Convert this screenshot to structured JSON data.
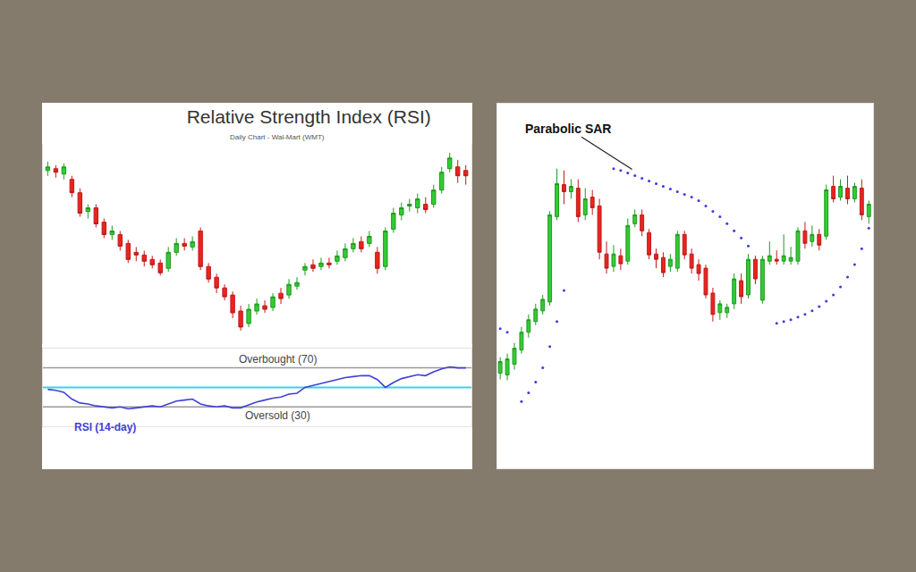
{
  "chart_data": [
    {
      "type": "candlestick",
      "title": "Relative Strength Index (RSI)",
      "subtitle": "Daily Chart - Wal-Mart (WMT)",
      "x": [
        1,
        2,
        3,
        4,
        5,
        6,
        7,
        8,
        9,
        10,
        11,
        12,
        13,
        14,
        15,
        16,
        17,
        18,
        19,
        20,
        21,
        22,
        23,
        24,
        25,
        26,
        27,
        28,
        29,
        30,
        31,
        32,
        33,
        34,
        35,
        36,
        37,
        38,
        39,
        40,
        41,
        42,
        43,
        44,
        45,
        46,
        47,
        48,
        49,
        50,
        51,
        52,
        53
      ],
      "open": [
        310,
        312,
        306,
        300,
        285,
        264,
        268,
        252,
        238,
        238,
        228,
        218,
        215,
        210,
        206,
        200,
        218,
        228,
        224,
        242,
        202,
        190,
        178,
        170,
        152,
        138,
        152,
        158,
        156,
        172,
        170,
        180,
        198,
        204,
        202,
        206,
        208,
        212,
        222,
        230,
        228,
        218,
        202,
        244,
        260,
        270,
        268,
        272,
        272,
        288,
        312,
        314,
        310
      ],
      "high": [
        320,
        316,
        318,
        304,
        290,
        272,
        272,
        256,
        248,
        242,
        232,
        224,
        220,
        214,
        210,
        224,
        234,
        234,
        236,
        246,
        206,
        194,
        182,
        174,
        158,
        160,
        166,
        164,
        172,
        178,
        188,
        190,
        206,
        210,
        212,
        212,
        220,
        228,
        234,
        236,
        242,
        224,
        246,
        268,
        274,
        278,
        284,
        280,
        294,
        314,
        330,
        322,
        316
      ],
      "low": [
        304,
        302,
        300,
        280,
        258,
        256,
        246,
        234,
        232,
        220,
        206,
        208,
        202,
        200,
        192,
        196,
        214,
        220,
        220,
        198,
        184,
        172,
        164,
        144,
        130,
        134,
        148,
        150,
        152,
        160,
        166,
        176,
        192,
        196,
        198,
        200,
        204,
        208,
        218,
        218,
        224,
        194,
        198,
        240,
        254,
        264,
        262,
        262,
        268,
        284,
        308,
        296,
        294
      ],
      "close": [
        314,
        308,
        314,
        285,
        262,
        268,
        250,
        238,
        242,
        225,
        210,
        215,
        208,
        204,
        195,
        218,
        228,
        225,
        230,
        202,
        188,
        178,
        168,
        150,
        134,
        154,
        160,
        154,
        168,
        166,
        182,
        184,
        202,
        200,
        206,
        204,
        214,
        222,
        228,
        222,
        236,
        200,
        242,
        262,
        268,
        272,
        278,
        266,
        288,
        308,
        324,
        304,
        304
      ],
      "xlim": [
        0.4,
        53.7
      ],
      "ylim": [
        115,
        340
      ],
      "tick_labels": false,
      "grid": false,
      "indicator": {
        "name": "RSI (14-day)",
        "type": "line",
        "color": "#4040d8",
        "values": [
          48,
          47,
          45,
          38,
          34,
          33,
          31,
          30,
          29,
          30,
          28,
          29,
          30,
          31,
          30,
          33,
          36,
          37,
          38,
          33,
          31,
          30,
          31,
          29,
          29,
          32,
          35,
          37,
          39,
          40,
          43,
          44,
          50,
          52,
          54,
          56,
          58,
          60,
          61,
          62,
          62,
          58,
          50,
          55,
          59,
          61,
          63,
          62,
          66,
          69,
          71,
          70,
          70
        ],
        "ylim": [
          10,
          90
        ],
        "levels": [
          {
            "label": "Overbought (70)",
            "value": 70,
            "color": "#9a9a9a"
          },
          {
            "label": "Oversold (30)",
            "value": 30,
            "color": "#9a9a9a"
          },
          {
            "value": 50,
            "color": "#3fd0e6"
          }
        ]
      }
    },
    {
      "type": "candlestick",
      "x": [
        1,
        2,
        3,
        4,
        5,
        6,
        7,
        8,
        9,
        10,
        11,
        12,
        13,
        14,
        15,
        16,
        17,
        18,
        19,
        20,
        21,
        22,
        23,
        24,
        25,
        26,
        27,
        28,
        29,
        30,
        31,
        32,
        33,
        34,
        35,
        36,
        37,
        38,
        39,
        40,
        41,
        42,
        43,
        44,
        45,
        46,
        47,
        48,
        49,
        50,
        51,
        52,
        53
      ],
      "open": [
        82,
        80,
        92,
        108,
        128,
        140,
        152,
        162,
        258,
        294,
        286,
        290,
        260,
        280,
        270,
        216,
        202,
        214,
        208,
        250,
        260,
        240,
        216,
        212,
        202,
        200,
        238,
        216,
        204,
        200,
        172,
        150,
        150,
        160,
        186,
        170,
        210,
        164,
        208,
        210,
        208,
        208,
        208,
        242,
        230,
        238,
        236,
        292,
        280,
        290,
        278,
        290,
        258
      ],
      "high": [
        100,
        104,
        116,
        134,
        148,
        160,
        170,
        264,
        312,
        310,
        300,
        300,
        290,
        288,
        278,
        230,
        226,
        222,
        256,
        266,
        266,
        244,
        222,
        218,
        216,
        242,
        242,
        222,
        210,
        204,
        178,
        164,
        160,
        194,
        194,
        216,
        214,
        214,
        230,
        220,
        238,
        224,
        246,
        252,
        248,
        244,
        294,
        304,
        300,
        304,
        296,
        300,
        276
      ],
      "low": [
        75,
        74,
        86,
        104,
        122,
        136,
        148,
        158,
        254,
        272,
        278,
        252,
        254,
        260,
        210,
        194,
        196,
        198,
        204,
        246,
        236,
        210,
        200,
        190,
        196,
        196,
        210,
        194,
        186,
        166,
        140,
        142,
        144,
        154,
        160,
        166,
        182,
        160,
        204,
        204,
        204,
        204,
        204,
        222,
        224,
        220,
        232,
        274,
        276,
        272,
        274,
        254,
        250
      ],
      "close": [
        95,
        98,
        110,
        128,
        142,
        154,
        165,
        260,
        295,
        286,
        292,
        258,
        278,
        268,
        218,
        200,
        216,
        205,
        248,
        260,
        242,
        215,
        210,
        195,
        210,
        238,
        215,
        200,
        194,
        170,
        148,
        160,
        156,
        188,
        168,
        210,
        188,
        210,
        214,
        208,
        214,
        212,
        242,
        228,
        238,
        226,
        288,
        278,
        292,
        278,
        292,
        260,
        272
      ],
      "xlim": [
        0.6,
        53.6
      ],
      "ylim": [
        -25,
        385
      ],
      "tick_labels": false,
      "grid": false,
      "indicator": {
        "name": "Parabolic SAR",
        "type": "scatter",
        "marker": "dot",
        "color": "#3a3ae0",
        "values": [
          132,
          128,
          null,
          50,
          60,
          72,
          88,
          112,
          140,
          175,
          null,
          null,
          null,
          null,
          null,
          null,
          312,
          310,
          307,
          304,
          301,
          298,
          295,
          292,
          289,
          286,
          283,
          280,
          276,
          270,
          264,
          258,
          250,
          242,
          234,
          225,
          null,
          null,
          null,
          138,
          140,
          142,
          145,
          148,
          152,
          157,
          163,
          170,
          179,
          190,
          204,
          222,
          245
        ]
      }
    }
  ]
}
